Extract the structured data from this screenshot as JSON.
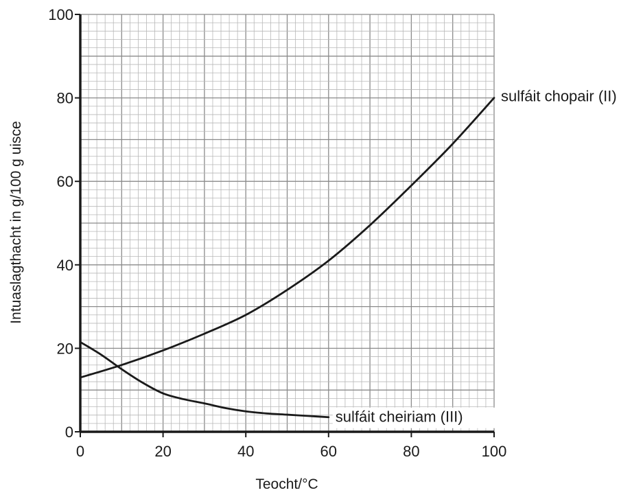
{
  "chart_data": {
    "type": "line",
    "title": "",
    "xlabel": "Teocht/°C",
    "ylabel": "Intuaslagthacht in g/100 g uisce",
    "xlim": [
      0,
      100
    ],
    "ylim": [
      0,
      100
    ],
    "x_ticks": [
      0,
      20,
      40,
      60,
      80,
      100
    ],
    "y_ticks": [
      0,
      20,
      40,
      60,
      80,
      100
    ],
    "grid": true,
    "grid_major_step": 10,
    "grid_minor_step": 2,
    "series": [
      {
        "name": "sulfáit chopair (II)",
        "x": [
          0,
          10,
          20,
          30,
          40,
          50,
          60,
          70,
          80,
          90,
          100
        ],
        "y": [
          13,
          16,
          19.5,
          23.5,
          28,
          34,
          41,
          49.5,
          59,
          69,
          80
        ]
      },
      {
        "name": "sulfáit cheiriam (III)",
        "x": [
          0,
          5,
          10,
          15,
          20,
          25,
          30,
          35,
          40,
          45,
          50,
          55,
          60
        ],
        "y": [
          21.5,
          18.5,
          15,
          11.8,
          9.2,
          7.8,
          6.8,
          5.7,
          4.9,
          4.4,
          4.1,
          3.8,
          3.5
        ]
      }
    ],
    "colors": {
      "line": "#1a1a1a",
      "grid_major": "#8a8a8a",
      "grid_minor": "#b8b8b8",
      "axis": "#1a1a1a"
    }
  }
}
